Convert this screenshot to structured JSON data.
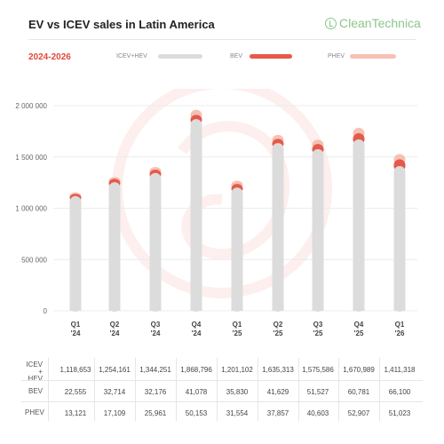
{
  "header": {
    "title": "EV vs ICEV sales in Latin America",
    "brand": "CleanTechnica",
    "period": "2024-2026"
  },
  "legend": [
    {
      "label": "ICEV+HEV",
      "color": "#dcdcdc"
    },
    {
      "label": "BEV",
      "color": "#e55a4b"
    },
    {
      "label": "PHEV",
      "color": "#f5c1b4"
    }
  ],
  "chart_data": {
    "type": "bar",
    "stacked": true,
    "categories": [
      "Q1 '24",
      "Q2 '24",
      "Q3 '24",
      "Q4 '24",
      "Q1 '25",
      "Q2 '25",
      "Q3 '25",
      "Q4 '25",
      "Q1 '26"
    ],
    "category_lines": [
      [
        "Q1",
        "'24"
      ],
      [
        "Q2",
        "'24"
      ],
      [
        "Q3",
        "'24"
      ],
      [
        "Q4",
        "'24"
      ],
      [
        "Q1",
        "'25"
      ],
      [
        "Q2",
        "'25"
      ],
      [
        "Q3",
        "'25"
      ],
      [
        "Q4",
        "'25"
      ],
      [
        "Q1",
        "'26"
      ]
    ],
    "series": [
      {
        "name": "ICEV+HEV",
        "color": "#dcdcdc",
        "values": [
          1118653,
          1254161,
          1344251,
          1868796,
          1201102,
          1635313,
          1575586,
          1670989,
          1411318
        ]
      },
      {
        "name": "BEV",
        "color": "#e55a4b",
        "values": [
          22555,
          32714,
          32176,
          41078,
          35830,
          41629,
          51527,
          60781,
          66100
        ]
      },
      {
        "name": "PHEV",
        "color": "#f5c1b4",
        "values": [
          13121,
          17109,
          25961,
          50153,
          31554,
          37857,
          40603,
          52907,
          51023
        ]
      }
    ],
    "yticks": [
      0,
      500000,
      1000000,
      1500000,
      2000000
    ],
    "ytick_labels": [
      "0",
      "500 000",
      "1 000 000",
      "1 500 000",
      "2 000 000"
    ],
    "ylim": [
      0,
      2000000
    ],
    "grid": true,
    "legend_position": "top"
  },
  "table": {
    "row_labels": [
      [
        "ICEV",
        "+ HEV"
      ],
      [
        "BEV"
      ],
      [
        "PHEV"
      ]
    ],
    "rows": [
      [
        "1,118,653",
        "1,254,161",
        "1,344,251",
        "1,868,796",
        "1,201,102",
        "1,635,313",
        "1,575,586",
        "1,670,989",
        "1,411,318"
      ],
      [
        "22,555",
        "32,714",
        "32,176",
        "41,078",
        "35,830",
        "41,629",
        "51,527",
        "60,781",
        "66,100"
      ],
      [
        "13,121",
        "17,109",
        "25,961",
        "50,153",
        "31,554",
        "37,857",
        "40,603",
        "52,907",
        "51,023"
      ]
    ]
  }
}
